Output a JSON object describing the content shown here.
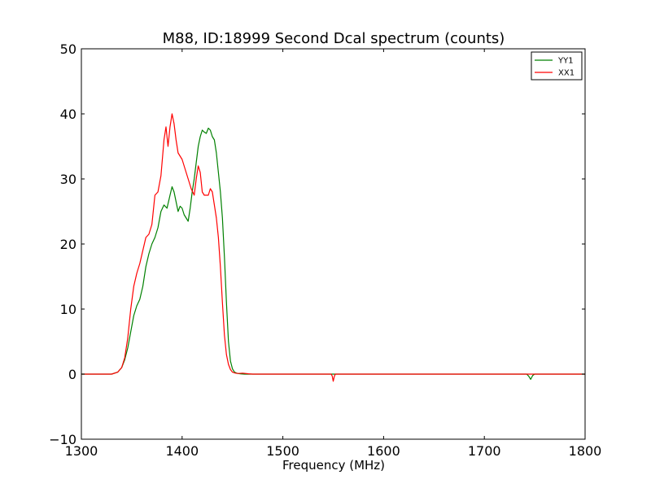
{
  "chart_data": {
    "type": "line",
    "title": "M88, ID:18999 Second Dcal spectrum (counts)",
    "xlabel": "Frequency (MHz)",
    "ylabel": "",
    "xlim": [
      1300,
      1800
    ],
    "ylim": [
      -10,
      50
    ],
    "xticks": [
      1300,
      1400,
      1500,
      1600,
      1700,
      1800
    ],
    "xtick_labels": [
      "1300",
      "1400",
      "1500",
      "1600",
      "1700",
      "1800"
    ],
    "yticks": [
      -10,
      0,
      10,
      20,
      30,
      40,
      50
    ],
    "ytick_labels": [
      "−10",
      "0",
      "10",
      "20",
      "30",
      "40",
      "50"
    ],
    "grid": false,
    "legend_position": "top-right",
    "series": [
      {
        "name": "YY1",
        "color": "#008000",
        "x": [
          1300,
          1330,
          1336,
          1340,
          1343,
          1346,
          1349,
          1352,
          1355,
          1358,
          1361,
          1364,
          1367,
          1370,
          1373,
          1376,
          1379,
          1382,
          1385,
          1388,
          1390,
          1392,
          1394,
          1396,
          1398,
          1400,
          1402,
          1404,
          1406,
          1408,
          1410,
          1412,
          1414,
          1416,
          1418,
          1420,
          1422,
          1424,
          1426,
          1428,
          1430,
          1432,
          1434,
          1436,
          1438,
          1440,
          1442,
          1444,
          1446,
          1448,
          1450,
          1452,
          1455,
          1458,
          1462,
          1470,
          1500,
          1548,
          1550,
          1552,
          1600,
          1742,
          1744,
          1746,
          1748,
          1750,
          1800
        ],
        "y": [
          0,
          0,
          0.3,
          1.0,
          2.2,
          4.0,
          6.5,
          9.0,
          10.5,
          11.5,
          13.5,
          16.5,
          18.5,
          20.0,
          21.0,
          22.5,
          25.0,
          26.0,
          25.5,
          27.5,
          28.8,
          28.0,
          26.5,
          25.0,
          25.8,
          25.5,
          24.5,
          24.0,
          23.5,
          25.5,
          28.0,
          30.0,
          32.5,
          35.0,
          36.5,
          37.5,
          37.2,
          37.0,
          37.8,
          37.5,
          36.5,
          36.0,
          34.0,
          31.0,
          28.0,
          24.0,
          18.0,
          11.0,
          5.0,
          2.0,
          0.8,
          0.3,
          0.1,
          0.05,
          0,
          0,
          0,
          0,
          0,
          0,
          0,
          0,
          -0.3,
          -0.8,
          -0.2,
          0,
          0
        ]
      },
      {
        "name": "XX1",
        "color": "#ff0000",
        "x": [
          1300,
          1330,
          1336,
          1340,
          1343,
          1346,
          1349,
          1352,
          1355,
          1358,
          1361,
          1364,
          1367,
          1370,
          1373,
          1376,
          1379,
          1382,
          1384,
          1386,
          1388,
          1390,
          1392,
          1394,
          1396,
          1398,
          1400,
          1403,
          1406,
          1409,
          1412,
          1414,
          1416,
          1418,
          1420,
          1422,
          1424,
          1426,
          1428,
          1430,
          1432,
          1434,
          1436,
          1438,
          1440,
          1442,
          1444,
          1446,
          1448,
          1450,
          1453,
          1456,
          1460,
          1466,
          1470,
          1500,
          1548,
          1549,
          1550,
          1551,
          1552,
          1600,
          1744,
          1746,
          1748,
          1800
        ],
        "y": [
          0,
          0,
          0.3,
          1.0,
          2.5,
          5.5,
          10.0,
          13.5,
          15.5,
          17.0,
          19.0,
          21.0,
          21.5,
          23.0,
          27.5,
          28.0,
          30.5,
          36.0,
          38.0,
          35.0,
          38.0,
          40.0,
          38.5,
          36.0,
          34.0,
          33.5,
          33.0,
          31.5,
          30.0,
          28.5,
          27.5,
          30.0,
          32.0,
          31.0,
          28.0,
          27.5,
          27.5,
          27.5,
          28.5,
          28.0,
          26.0,
          24.0,
          21.0,
          16.5,
          11.0,
          6.0,
          3.0,
          1.5,
          0.7,
          0.3,
          0.15,
          0.1,
          0.15,
          0.05,
          0,
          0,
          0,
          -0.3,
          -1.1,
          -0.4,
          0,
          0,
          0,
          0,
          0,
          0
        ]
      }
    ]
  }
}
